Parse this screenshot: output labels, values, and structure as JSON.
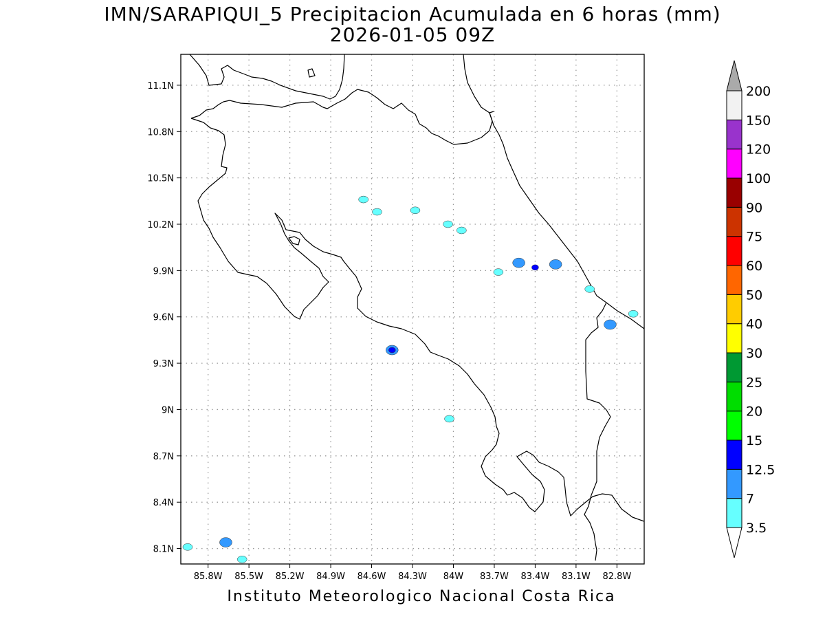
{
  "title_line1": "IMN/SARAPIQUI_5 Precipitacion Acumulada en 6 horas (mm)",
  "title_line2": "2026-01-05 09Z",
  "credit": "Instituto Meteorologico Nacional Costa Rica",
  "map": {
    "lon_range": [
      -86.0,
      -82.6
    ],
    "lat_range": [
      8.0,
      11.3
    ],
    "lon_ticks": [
      {
        "v": -85.8,
        "label": "85.8W"
      },
      {
        "v": -85.5,
        "label": "85.5W"
      },
      {
        "v": -85.2,
        "label": "85.2W"
      },
      {
        "v": -84.9,
        "label": "84.9W"
      },
      {
        "v": -84.6,
        "label": "84.6W"
      },
      {
        "v": -84.3,
        "label": "84.3W"
      },
      {
        "v": -84.0,
        "label": "84W"
      },
      {
        "v": -83.7,
        "label": "83.7W"
      },
      {
        "v": -83.4,
        "label": "83.4W"
      },
      {
        "v": -83.1,
        "label": "83.1W"
      },
      {
        "v": -82.8,
        "label": "82.8W"
      }
    ],
    "lat_ticks": [
      {
        "v": 11.1,
        "label": "11.1N"
      },
      {
        "v": 10.8,
        "label": "10.8N"
      },
      {
        "v": 10.5,
        "label": "10.5N"
      },
      {
        "v": 10.2,
        "label": "10.2N"
      },
      {
        "v": 9.9,
        "label": "9.9N"
      },
      {
        "v": 9.6,
        "label": "9.6N"
      },
      {
        "v": 9.3,
        "label": "9.3N"
      },
      {
        "v": 9.0,
        "label": "9N"
      },
      {
        "v": 8.7,
        "label": "8.7N"
      },
      {
        "v": 8.4,
        "label": "8.4N"
      },
      {
        "v": 8.1,
        "label": "8.1N"
      }
    ],
    "precip_cells": [
      {
        "lon": -84.45,
        "lat": 9.385,
        "level": "7"
      },
      {
        "lon": -84.45,
        "lat": 9.385,
        "level": "12.5"
      },
      {
        "lon": -83.4,
        "lat": 9.92,
        "level": "12.5"
      },
      {
        "lon": -83.52,
        "lat": 9.95,
        "level": "7"
      },
      {
        "lon": -83.25,
        "lat": 9.94,
        "level": "7"
      },
      {
        "lon": -82.85,
        "lat": 9.55,
        "level": "7"
      },
      {
        "lon": -85.67,
        "lat": 8.14,
        "level": "7"
      },
      {
        "lon": -84.28,
        "lat": 10.29,
        "level": "3.5"
      },
      {
        "lon": -84.56,
        "lat": 10.28,
        "level": "3.5"
      },
      {
        "lon": -84.66,
        "lat": 10.36,
        "level": "3.5"
      },
      {
        "lon": -84.04,
        "lat": 10.2,
        "level": "3.5"
      },
      {
        "lon": -83.94,
        "lat": 10.16,
        "level": "3.5"
      },
      {
        "lon": -83.0,
        "lat": 9.78,
        "level": "3.5"
      },
      {
        "lon": -82.68,
        "lat": 9.62,
        "level": "3.5"
      },
      {
        "lon": -83.67,
        "lat": 9.89,
        "level": "3.5"
      },
      {
        "lon": -84.03,
        "lat": 8.94,
        "level": "3.5"
      },
      {
        "lon": -85.95,
        "lat": 8.11,
        "level": "3.5"
      },
      {
        "lon": -85.55,
        "lat": 8.03,
        "level": "3.5"
      }
    ]
  },
  "colorbar": {
    "levels": [
      {
        "label": "3.5",
        "color": "#66ffff"
      },
      {
        "label": "7",
        "color": "#3399ff"
      },
      {
        "label": "12.5",
        "color": "#0000ff"
      },
      {
        "label": "15",
        "color": "#00ff00"
      },
      {
        "label": "20",
        "color": "#00dd00"
      },
      {
        "label": "25",
        "color": "#00a000"
      },
      {
        "label": "30",
        "color": "#009933"
      },
      {
        "label": "40",
        "color": "#ffff00"
      },
      {
        "label": "50",
        "color": "#ffcc00"
      },
      {
        "label": "60",
        "color": "#ff6600"
      },
      {
        "label": "75",
        "color": "#ff0000"
      },
      {
        "label": "90",
        "color": "#cc3300"
      },
      {
        "label": "100",
        "color": "#990000"
      },
      {
        "label": "120",
        "color": "#ff00ff"
      },
      {
        "label": "150",
        "color": "#9933cc"
      },
      {
        "label": "200",
        "color": "#f2f2f2"
      }
    ],
    "bins": [
      "#66ffff",
      "#3399ff",
      "#0000ff",
      "#00ff00",
      "#00dd00",
      "#009933",
      "#ffff00",
      "#ffcc00",
      "#ff6600",
      "#ff0000",
      "#cc3300",
      "#990000",
      "#ff00ff",
      "#9933cc",
      "#f2f2f2"
    ],
    "over_color": "#aaaaaa"
  }
}
